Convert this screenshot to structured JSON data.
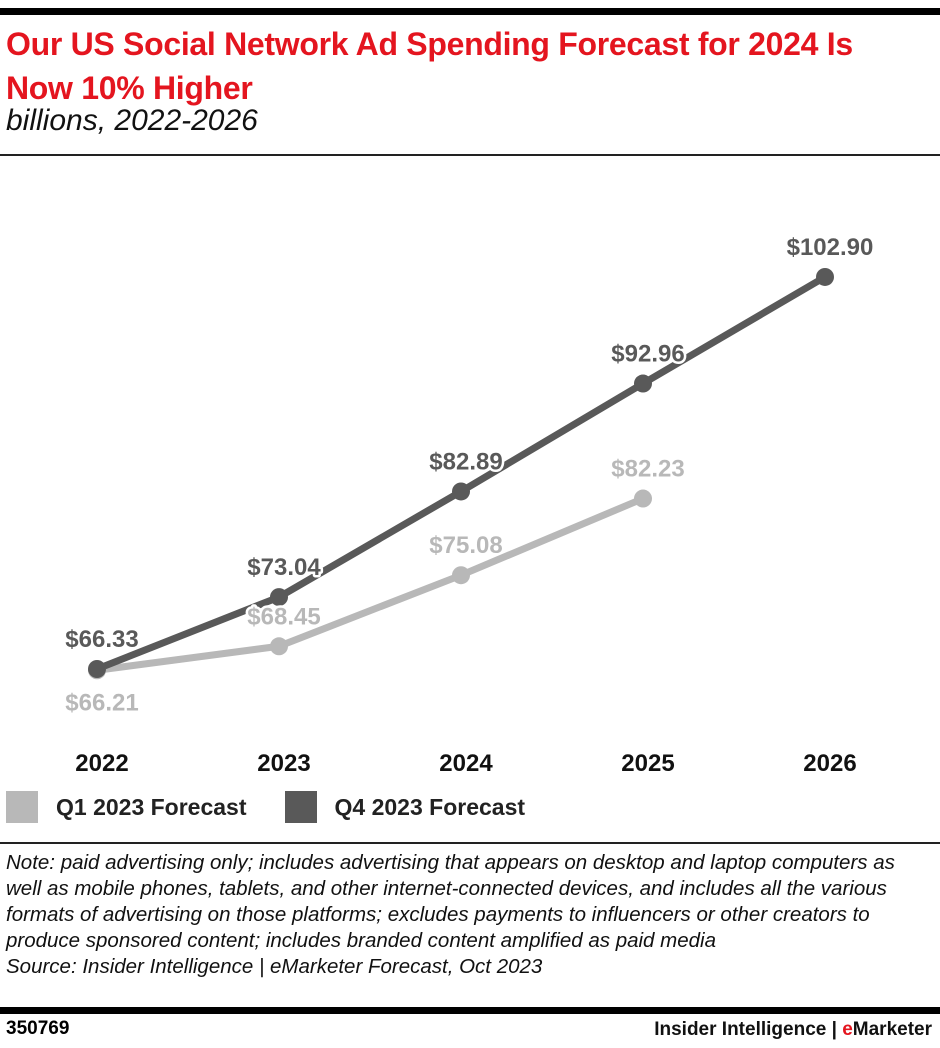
{
  "title": "Our US Social Network Ad Spending Forecast for 2024 Is Now 10% Higher",
  "subtitle": "billions, 2022-2026",
  "chart_data": {
    "type": "line",
    "title": "Our US Social Network Ad Spending Forecast for 2024 Is Now 10% Higher",
    "subtitle": "billions, 2022-2026",
    "categories": [
      "2022",
      "2023",
      "2024",
      "2025",
      "2026"
    ],
    "series": [
      {
        "name": "Q1 2023 Forecast",
        "color": "#b8b8b8",
        "values": [
          66.21,
          68.45,
          75.08,
          82.23,
          null
        ],
        "labels": [
          "$66.21",
          "$68.45",
          "$75.08",
          "$82.23",
          null
        ]
      },
      {
        "name": "Q4 2023 Forecast",
        "color": "#595959",
        "values": [
          66.33,
          73.04,
          82.89,
          92.96,
          102.9
        ],
        "labels": [
          "$66.33",
          "$73.04",
          "$82.89",
          "$92.96",
          "$102.90"
        ]
      }
    ],
    "grid": false,
    "legend": "bottom-left"
  },
  "legend": [
    "Q1 2023 Forecast",
    "Q4 2023 Forecast"
  ],
  "note": "Note: paid advertising only; includes advertising that appears on desktop and laptop computers as well as mobile phones, tablets, and other internet-connected devices, and includes all the various formats of advertising on those platforms; excludes payments to influencers or other creators to produce sponsored content; includes branded content amplified as paid media",
  "source": "Source: Insider Intelligence | eMarketer Forecast, Oct 2023",
  "chart_id": "350769",
  "brand": {
    "main": "Insider Intelligence | ",
    "e": "e",
    "rest": "Marketer"
  }
}
